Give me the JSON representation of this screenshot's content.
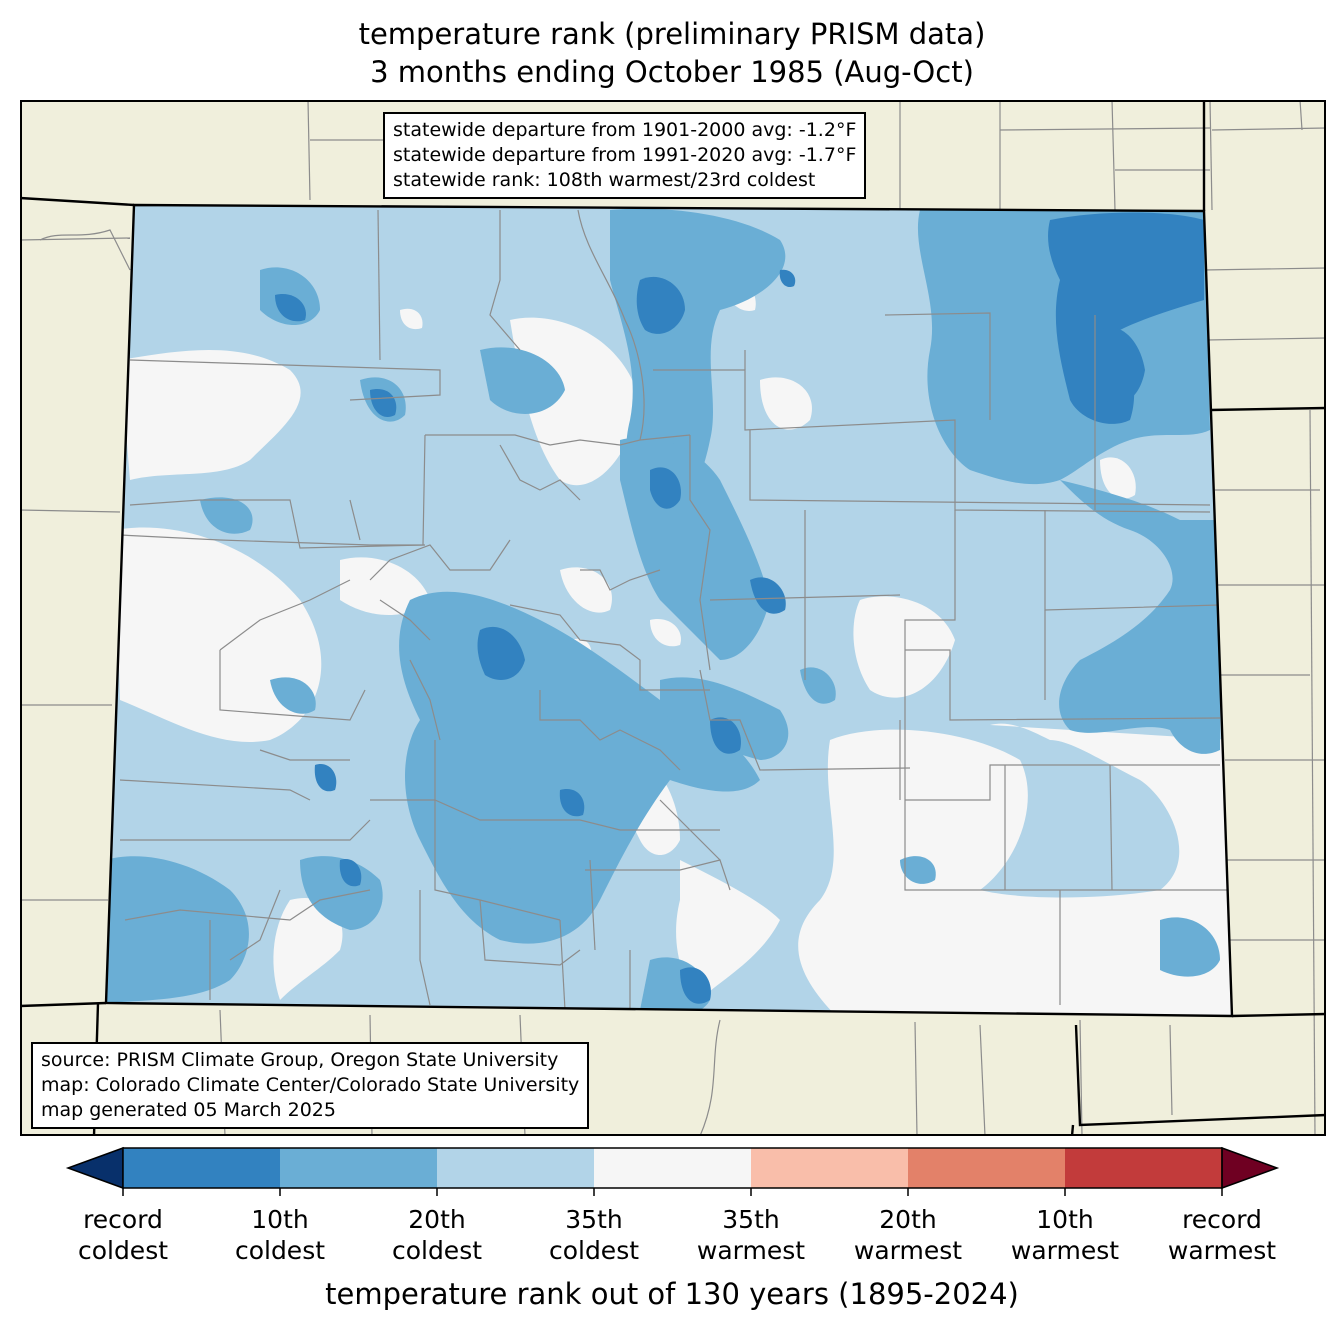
{
  "title_line1": "temperature rank (preliminary PRISM data)",
  "title_line2": "3 months ending October 1985 (Aug-Oct)",
  "stats": {
    "line1": "statewide departure from 1901-2000 avg: -1.2°F",
    "line2": "statewide departure from 1991-2020 avg: -1.7°F",
    "line3": "statewide rank: 108th warmest/23rd coldest"
  },
  "source": {
    "line1": "source: PRISM Climate Group, Oregon State University",
    "line2": "map: Colorado Climate Center/Colorado State University",
    "line3": "map generated 05 March 2025"
  },
  "colorbar": {
    "title": "temperature rank out of 130 years (1895-2024)",
    "colors": [
      "#08306b",
      "#3282c0",
      "#6aaed5",
      "#b2d4e8",
      "#f6f6f6",
      "#f9beaa",
      "#e38169",
      "#c23b3b",
      "#6f0022"
    ],
    "labels": [
      {
        "top": "record",
        "bottom": "coldest"
      },
      {
        "top": "10th",
        "bottom": "coldest"
      },
      {
        "top": "20th",
        "bottom": "coldest"
      },
      {
        "top": "35th",
        "bottom": "coldest"
      },
      {
        "top": "35th",
        "bottom": "warmest"
      },
      {
        "top": "20th",
        "bottom": "warmest"
      },
      {
        "top": "10th",
        "bottom": "warmest"
      },
      {
        "top": "record",
        "bottom": "warmest"
      }
    ]
  },
  "map_colors": {
    "land": "#f0efdc",
    "record_cold": "#08306b",
    "rank10": "#3282c0",
    "rank20": "#6aaed5",
    "rank35": "#b2d4e8",
    "near_normal": "#f6f6f6",
    "county_line": "#8c8c8c",
    "state_line": "#000000"
  }
}
